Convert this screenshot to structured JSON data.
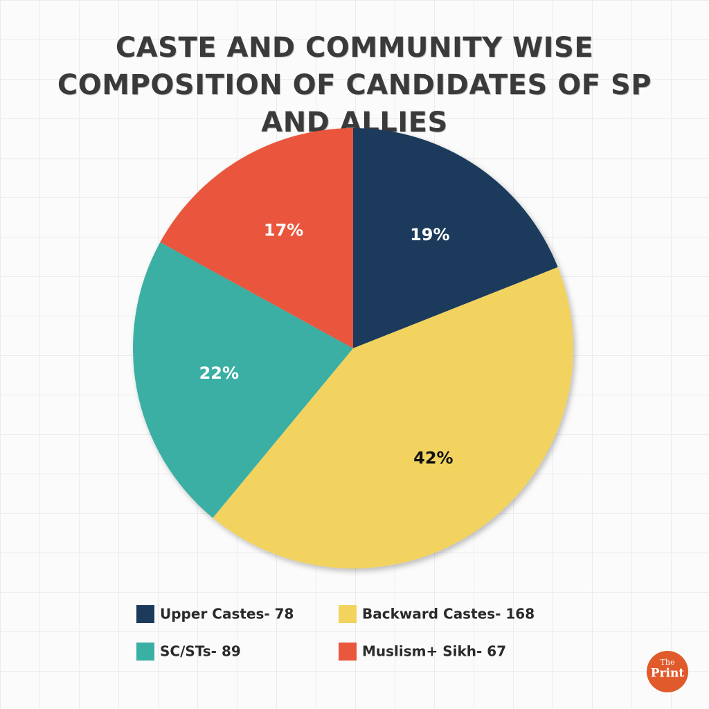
{
  "chart_data": {
    "type": "pie",
    "title": "CASTE AND COMMUNITY WISE COMPOSITION OF CANDIDATES OF SP AND ALLIES",
    "categories": [
      "Upper Castes- 78",
      "Backward Castes- 168",
      "SC/STs- 89",
      "Muslism+ Sikh- 67"
    ],
    "values": [
      19,
      42,
      22,
      17
    ],
    "value_labels": [
      "19%",
      "42%",
      "22%",
      "17%"
    ],
    "colors": [
      "#1b3a5c",
      "#f2d35e",
      "#3aafa4",
      "#e9573c"
    ],
    "value_label_colors": [
      "#ffffff",
      "#111111",
      "#ffffff",
      "#ffffff"
    ]
  },
  "logo": {
    "top": "The",
    "bottom": "Print"
  }
}
